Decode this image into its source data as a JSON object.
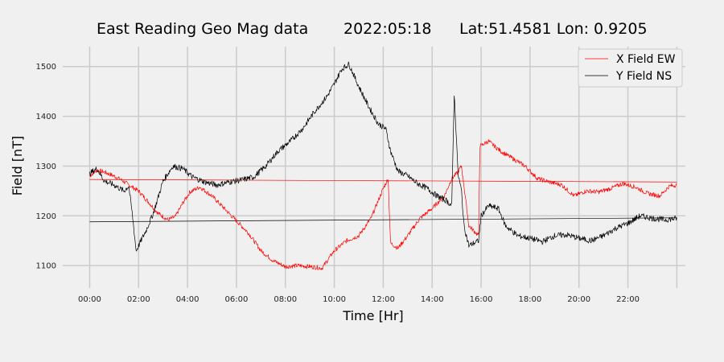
{
  "chart_data": {
    "type": "line",
    "title": {
      "name": "East Reading Geo Mag data",
      "date": "2022:05:18",
      "location": "Lat:51.4581  Lon: 0.9205"
    },
    "xlabel": "Time  [Hr]",
    "ylabel": "Field  [nT]",
    "xlim": [
      -1.1,
      24.35
    ],
    "ylim": [
      1055,
      1540
    ],
    "x_ticks": [
      0,
      2,
      4,
      6,
      8,
      10,
      12,
      14,
      16,
      18,
      20,
      22
    ],
    "x_tick_labels": [
      "00:00",
      "02:00",
      "04:00",
      "06:00",
      "08:00",
      "10:00",
      "12:00",
      "14:00",
      "16:00",
      "18:00",
      "20:00",
      "22:00"
    ],
    "x_gridlines": [
      0,
      2,
      4,
      6,
      8,
      10,
      12,
      14,
      16,
      18,
      20,
      22,
      24
    ],
    "y_ticks": [
      1100,
      1200,
      1300,
      1400,
      1500
    ],
    "y_tick_labels": [
      "1100",
      "1200",
      "1300",
      "1400",
      "1500"
    ],
    "grid": true,
    "legend_position": "top-right",
    "series": [
      {
        "name": "X Field EW",
        "color": "#ff0000",
        "x": [
          0,
          0.3,
          0.6,
          1.0,
          1.3,
          1.6,
          2.0,
          2.4,
          2.8,
          3.2,
          3.5,
          3.8,
          4.1,
          4.5,
          5.0,
          5.5,
          6.0,
          6.5,
          7.0,
          7.5,
          8.0,
          8.5,
          9.0,
          9.5,
          10.0,
          10.5,
          11.0,
          11.5,
          12.0,
          12.2,
          12.3,
          12.6,
          13.0,
          13.5,
          14.0,
          14.5,
          14.8,
          15.0,
          15.2,
          15.5,
          15.9,
          15.95,
          16.3,
          16.8,
          17.3,
          17.8,
          18.3,
          18.8,
          19.3,
          19.8,
          20.3,
          20.8,
          21.3,
          21.8,
          22.3,
          22.8,
          23.3,
          23.7,
          24.0
        ],
        "y": [
          1280,
          1292,
          1288,
          1280,
          1272,
          1262,
          1250,
          1228,
          1205,
          1192,
          1198,
          1225,
          1248,
          1258,
          1240,
          1215,
          1190,
          1165,
          1130,
          1110,
          1098,
          1100,
          1098,
          1095,
          1130,
          1150,
          1160,
          1195,
          1255,
          1275,
          1145,
          1135,
          1160,
          1195,
          1215,
          1240,
          1275,
          1285,
          1300,
          1180,
          1160,
          1340,
          1350,
          1330,
          1315,
          1300,
          1275,
          1268,
          1262,
          1240,
          1250,
          1248,
          1255,
          1265,
          1258,
          1245,
          1240,
          1260,
          1262
        ]
      },
      {
        "name": "Y Field NS",
        "color": "#000000",
        "x": [
          0,
          0.3,
          0.6,
          1.0,
          1.4,
          1.6,
          1.75,
          1.9,
          2.0,
          2.3,
          2.6,
          3.0,
          3.4,
          3.8,
          4.2,
          4.7,
          5.2,
          5.7,
          6.2,
          6.7,
          7.2,
          7.7,
          8.2,
          8.7,
          9.2,
          9.7,
          10.0,
          10.3,
          10.6,
          11.0,
          11.4,
          11.8,
          12.1,
          12.3,
          12.6,
          13.0,
          13.4,
          13.8,
          14.2,
          14.6,
          14.8,
          14.9,
          15.0,
          15.05,
          15.2,
          15.3,
          15.5,
          15.9,
          16.0,
          16.3,
          16.7,
          17.0,
          17.5,
          18.0,
          18.5,
          19.0,
          19.5,
          20.0,
          20.5,
          21.0,
          21.5,
          22.0,
          22.5,
          23.0,
          23.5,
          24.0
        ],
        "y": [
          1285,
          1295,
          1270,
          1262,
          1250,
          1260,
          1200,
          1130,
          1140,
          1170,
          1205,
          1270,
          1300,
          1295,
          1278,
          1268,
          1262,
          1268,
          1272,
          1278,
          1300,
          1330,
          1350,
          1375,
          1410,
          1440,
          1465,
          1495,
          1505,
          1460,
          1420,
          1385,
          1375,
          1330,
          1290,
          1280,
          1265,
          1255,
          1240,
          1230,
          1220,
          1445,
          1350,
          1285,
          1250,
          1180,
          1140,
          1150,
          1200,
          1220,
          1215,
          1180,
          1160,
          1155,
          1148,
          1160,
          1162,
          1155,
          1150,
          1160,
          1175,
          1185,
          1200,
          1195,
          1192,
          1195
        ]
      }
    ],
    "baselines": [
      {
        "color": "#ff0000",
        "x": [
          0,
          24
        ],
        "y": [
          1273,
          1268
        ]
      },
      {
        "color": "#000000",
        "x": [
          0,
          24
        ],
        "y": [
          1188,
          1196
        ]
      }
    ]
  }
}
